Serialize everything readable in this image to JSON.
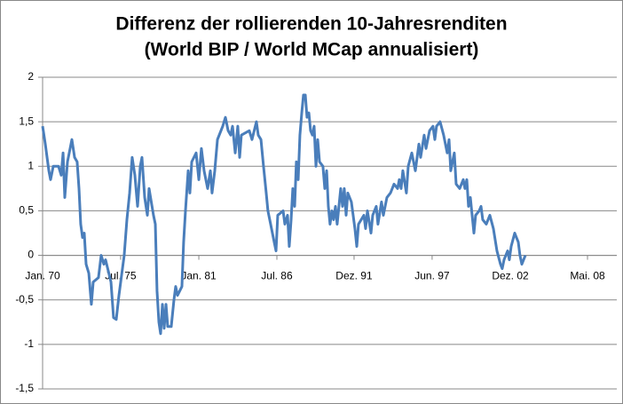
{
  "chart_data": {
    "type": "line",
    "title": "Differenz der rollierenden 10-Jahresrenditen",
    "subtitle": "(World BIP / World MCap annualisiert)",
    "x": [
      1970.0,
      1970.19,
      1970.44,
      1970.56,
      1970.75,
      1971.12,
      1971.31,
      1971.44,
      1971.56,
      1971.75,
      1972.06,
      1972.25,
      1972.43,
      1972.56,
      1972.68,
      1972.81,
      1972.93,
      1973.06,
      1973.25,
      1973.43,
      1973.56,
      1973.93,
      1974.12,
      1974.31,
      1974.43,
      1974.81,
      1974.99,
      1975.18,
      1975.37,
      1975.74,
      1975.93,
      1976.12,
      1976.3,
      1976.49,
      1976.68,
      1976.87,
      1976.99,
      1977.18,
      1977.37,
      1977.49,
      1977.8,
      1977.93,
      1978.05,
      1978.18,
      1978.3,
      1978.43,
      1978.55,
      1978.68,
      1978.8,
      1979.05,
      1979.24,
      1979.36,
      1979.49,
      1979.8,
      1979.92,
      1980.05,
      1980.24,
      1980.36,
      1980.49,
      1980.8,
      1980.99,
      1981.17,
      1981.36,
      1981.61,
      1981.8,
      1981.92,
      1982.11,
      1982.3,
      1982.67,
      1982.86,
      1983.05,
      1983.23,
      1983.36,
      1983.55,
      1983.73,
      1983.86,
      1983.98,
      1984.54,
      1984.73,
      1985.04,
      1985.17,
      1985.36,
      1985.54,
      1985.73,
      1985.85,
      1986.04,
      1986.29,
      1986.42,
      1986.54,
      1986.92,
      1987.04,
      1987.23,
      1987.35,
      1987.48,
      1987.6,
      1987.73,
      1987.85,
      1987.98,
      1988.1,
      1988.23,
      1988.35,
      1988.48,
      1988.6,
      1988.73,
      1988.85,
      1988.98,
      1989.1,
      1989.23,
      1989.35,
      1989.48,
      1989.72,
      1989.85,
      1989.98,
      1990.1,
      1990.22,
      1990.35,
      1990.47,
      1990.6,
      1990.72,
      1990.97,
      1991.1,
      1991.22,
      1991.35,
      1991.47,
      1991.72,
      1991.97,
      1992.1,
      1992.22,
      1992.6,
      1992.72,
      1992.85,
      1993.1,
      1993.22,
      1993.47,
      1993.59,
      1993.84,
      1993.97,
      1994.22,
      1994.47,
      1994.72,
      1994.97,
      1995.09,
      1995.22,
      1995.34,
      1995.59,
      1995.72,
      1995.97,
      1996.22,
      1996.47,
      1996.59,
      1996.84,
      1996.97,
      1997.22,
      1997.46,
      1997.59,
      1997.71,
      1997.96,
      1998.21,
      1998.46,
      1998.59,
      1998.71,
      1998.96,
      1999.09,
      1999.34,
      1999.59,
      1999.71,
      1999.84,
      1999.96,
      2000.09,
      2000.34,
      2000.46,
      2000.71,
      2000.84,
      2000.96,
      2001.21,
      2001.46,
      2001.71,
      2001.96,
      2002.21,
      2002.33,
      2002.46,
      2002.71,
      2002.83,
      2002.96,
      2003.21,
      2003.33,
      2003.46,
      2003.58,
      2003.71,
      2003.96
    ],
    "series": [
      {
        "color": "#4a7ebb",
        "values": [
          1.45,
          1.25,
          0.95,
          0.85,
          1.0,
          1.0,
          0.9,
          1.15,
          0.65,
          1.05,
          1.3,
          1.1,
          1.05,
          0.75,
          0.35,
          0.2,
          0.25,
          -0.1,
          -0.2,
          -0.55,
          -0.3,
          -0.25,
          0.0,
          -0.1,
          -0.05,
          -0.3,
          -0.7,
          -0.72,
          -0.45,
          0.0,
          0.4,
          0.7,
          1.1,
          0.9,
          0.55,
          1.0,
          1.1,
          0.65,
          0.45,
          0.75,
          0.45,
          0.35,
          -0.4,
          -0.75,
          -0.88,
          -0.55,
          -0.82,
          -0.55,
          -0.8,
          -0.8,
          -0.5,
          -0.35,
          -0.45,
          -0.35,
          0.15,
          0.5,
          0.95,
          0.7,
          1.05,
          1.15,
          0.85,
          1.2,
          0.95,
          0.75,
          0.95,
          0.7,
          0.95,
          1.3,
          1.45,
          1.55,
          1.4,
          1.35,
          1.45,
          1.15,
          1.45,
          1.1,
          1.35,
          1.4,
          1.3,
          1.5,
          1.35,
          1.3,
          1.0,
          0.7,
          0.5,
          0.35,
          0.15,
          0.05,
          0.45,
          0.5,
          0.35,
          0.45,
          0.1,
          0.4,
          0.75,
          0.55,
          1.05,
          0.85,
          1.35,
          1.6,
          1.8,
          1.8,
          1.55,
          1.6,
          1.4,
          1.35,
          1.45,
          1.0,
          1.3,
          1.05,
          1.0,
          0.75,
          0.95,
          0.55,
          0.35,
          0.5,
          0.4,
          0.55,
          0.35,
          0.75,
          0.55,
          0.75,
          0.45,
          0.7,
          0.6,
          0.3,
          0.1,
          0.35,
          0.45,
          0.3,
          0.5,
          0.25,
          0.45,
          0.55,
          0.35,
          0.6,
          0.45,
          0.65,
          0.7,
          0.8,
          0.75,
          0.85,
          0.75,
          0.95,
          0.7,
          1.0,
          1.15,
          0.95,
          1.25,
          1.1,
          1.35,
          1.2,
          1.4,
          1.45,
          1.3,
          1.45,
          1.5,
          1.35,
          1.15,
          1.3,
          0.95,
          1.15,
          0.8,
          0.75,
          0.85,
          0.75,
          0.85,
          0.55,
          0.65,
          0.25,
          0.45,
          0.5,
          0.55,
          0.4,
          0.35,
          0.45,
          0.3,
          0.05,
          -0.1,
          -0.15,
          -0.05,
          0.05,
          -0.05,
          0.1,
          0.25,
          0.2,
          0.15,
          0.0,
          -0.1,
          0.0
        ]
      }
    ],
    "xlim": [
      1970,
      2010.39
    ],
    "xticks": [
      {
        "value": 1970.0,
        "label": "Jan. 70"
      },
      {
        "value": 1975.49,
        "label": "Jul. 75"
      },
      {
        "value": 1980.99,
        "label": "Jan. 81"
      },
      {
        "value": 1986.48,
        "label": "Jul. 86"
      },
      {
        "value": 1991.91,
        "label": "Dez. 91"
      },
      {
        "value": 1997.4,
        "label": "Jun. 97"
      },
      {
        "value": 2002.9,
        "label": "Dez. 02"
      },
      {
        "value": 2008.33,
        "label": "Mai. 08"
      }
    ],
    "ylim": [
      -1.5,
      2
    ],
    "yticks": [
      -1,
      {
        "value": -1.5,
        "label": "-1,5"
      },
      {
        "value": -0.5,
        "label": "-0,5"
      },
      0,
      {
        "value": 0.5,
        "label": "0,5"
      },
      1,
      {
        "value": 1.5,
        "label": "1,5"
      },
      2
    ],
    "grid": true
  }
}
